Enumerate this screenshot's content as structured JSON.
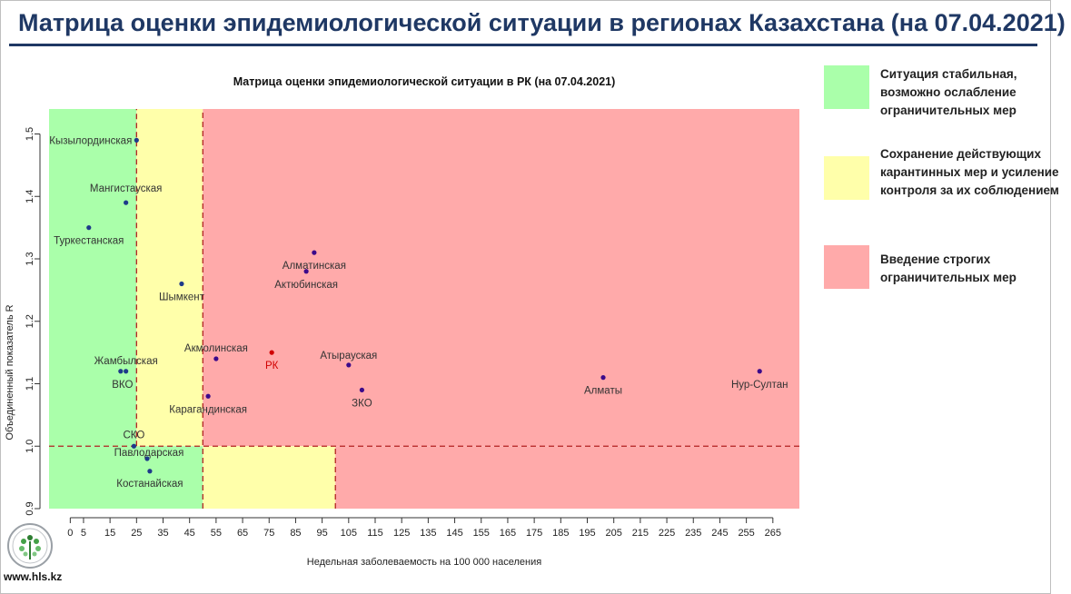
{
  "slide": {
    "title": "Матрица оценки эпидемиологической ситуации в регионах Казахстана (на 07.04.2021)",
    "site": "www.hls.kz"
  },
  "legend": [
    {
      "color": "#aaffaa",
      "text": "Ситуация стабильная, возможно ослабление ограничительных мер"
    },
    {
      "color": "#ffffaa",
      "text": "Сохранение действующих карантинных мер и усиление контроля за их соблюдением"
    },
    {
      "color": "#ffaaaa",
      "text": "Введение строгих ограничительных мер"
    }
  ],
  "chart_data": {
    "type": "scatter",
    "title": "Матрица оценки эпидемиологической ситуации в РК (на 07.04.2021)",
    "xlabel": "Недельная заболеваемость на 100 000 населения",
    "ylabel": "Объединенный показатель R",
    "xlim": [
      -8,
      275
    ],
    "ylim": [
      0.9,
      1.54
    ],
    "xticks": [
      0,
      5,
      15,
      25,
      35,
      45,
      55,
      65,
      75,
      85,
      95,
      105,
      115,
      125,
      135,
      145,
      155,
      165,
      175,
      185,
      195,
      205,
      215,
      225,
      235,
      245,
      255,
      265
    ],
    "yticks": [
      0.9,
      1.0,
      1.1,
      1.2,
      1.3,
      1.4,
      1.5
    ],
    "zones": [
      {
        "color": "#aaffaa",
        "x": [
          -8,
          25
        ],
        "y": [
          1.0,
          1.54
        ]
      },
      {
        "color": "#ffffaa",
        "x": [
          25,
          50
        ],
        "y": [
          1.0,
          1.54
        ]
      },
      {
        "color": "#ffaaaa",
        "x": [
          50,
          275
        ],
        "y": [
          1.0,
          1.54
        ]
      },
      {
        "color": "#aaffaa",
        "x": [
          -8,
          50
        ],
        "y": [
          0.9,
          1.0
        ]
      },
      {
        "color": "#ffffaa",
        "x": [
          50,
          100
        ],
        "y": [
          0.9,
          1.0
        ]
      },
      {
        "color": "#ffaaaa",
        "x": [
          100,
          275
        ],
        "y": [
          0.9,
          1.0
        ]
      }
    ],
    "dashed_lines": [
      {
        "orientation": "vertical",
        "value": 25,
        "y": [
          1.0,
          1.54
        ]
      },
      {
        "orientation": "vertical",
        "value": 50,
        "y": [
          0.9,
          1.54
        ]
      },
      {
        "orientation": "vertical",
        "value": 100,
        "y": [
          0.9,
          1.0
        ]
      },
      {
        "orientation": "horizontal",
        "value": 1.0,
        "x": [
          -8,
          275
        ]
      }
    ],
    "points": [
      {
        "label": "Кызылординская",
        "x": 25,
        "y": 1.49,
        "color": "#1e3a8a",
        "label_dx": -5,
        "label_dy": 4,
        "anchor": "end"
      },
      {
        "label": "Мангистауская",
        "x": 21,
        "y": 1.39,
        "color": "#1e3a8a",
        "label_dx": 0,
        "label_dy": -12,
        "anchor": "middle"
      },
      {
        "label": "Туркестанская",
        "x": 7,
        "y": 1.35,
        "color": "#1e3a8a",
        "label_dx": 0,
        "label_dy": 18,
        "anchor": "middle"
      },
      {
        "label": "Шымкент",
        "x": 42,
        "y": 1.26,
        "color": "#1e3a8a",
        "label_dx": 0,
        "label_dy": 18,
        "anchor": "middle"
      },
      {
        "label": "Алматинская",
        "x": 92,
        "y": 1.31,
        "color": "#3b0a8a",
        "label_dx": 0,
        "label_dy": 18,
        "anchor": "middle"
      },
      {
        "label": "Актюбинская",
        "x": 89,
        "y": 1.28,
        "color": "#3b0a8a",
        "label_dx": 0,
        "label_dy": 18,
        "anchor": "middle"
      },
      {
        "label": "Жамбылская",
        "x": 21,
        "y": 1.12,
        "color": "#1e3a8a",
        "label_dx": 0,
        "label_dy": -8,
        "anchor": "middle"
      },
      {
        "label": "ВКО",
        "x": 19,
        "y": 1.12,
        "color": "#1e3a8a",
        "label_dx": 2,
        "label_dy": 18,
        "anchor": "middle"
      },
      {
        "label": "Акмолинская",
        "x": 55,
        "y": 1.14,
        "color": "#3b0a8a",
        "label_dx": 0,
        "label_dy": -8,
        "anchor": "middle"
      },
      {
        "label": "РК",
        "x": 76,
        "y": 1.15,
        "color": "#d00000",
        "label_dx": 0,
        "label_dy": 18,
        "anchor": "middle",
        "label_color": "#d00000"
      },
      {
        "label": "Атырауская",
        "x": 105,
        "y": 1.13,
        "color": "#3b0a8a",
        "label_dx": 0,
        "label_dy": -7,
        "anchor": "middle"
      },
      {
        "label": "ЗКО",
        "x": 110,
        "y": 1.09,
        "color": "#3b0a8a",
        "label_dx": 0,
        "label_dy": 18,
        "anchor": "middle"
      },
      {
        "label": "Карагандинская",
        "x": 52,
        "y": 1.08,
        "color": "#3b0a8a",
        "label_dx": 0,
        "label_dy": 18,
        "anchor": "middle"
      },
      {
        "label": "Алматы",
        "x": 201,
        "y": 1.11,
        "color": "#3b0a8a",
        "label_dx": 0,
        "label_dy": 18,
        "anchor": "middle"
      },
      {
        "label": "Нур-Султан",
        "x": 260,
        "y": 1.12,
        "color": "#3b0a8a",
        "label_dx": 0,
        "label_dy": 18,
        "anchor": "middle"
      },
      {
        "label": "СКО",
        "x": 24,
        "y": 1.0,
        "color": "#1e3a8a",
        "label_dx": 0,
        "label_dy": -9,
        "anchor": "middle"
      },
      {
        "label": "Павлодарская",
        "x": 29,
        "y": 0.98,
        "color": "#1e3a8a",
        "label_dx": 2,
        "label_dy": -3,
        "anchor": "middle"
      },
      {
        "label": "Костанайская",
        "x": 30,
        "y": 0.96,
        "color": "#1e3a8a",
        "label_dx": 0,
        "label_dy": 17,
        "anchor": "middle"
      }
    ]
  }
}
